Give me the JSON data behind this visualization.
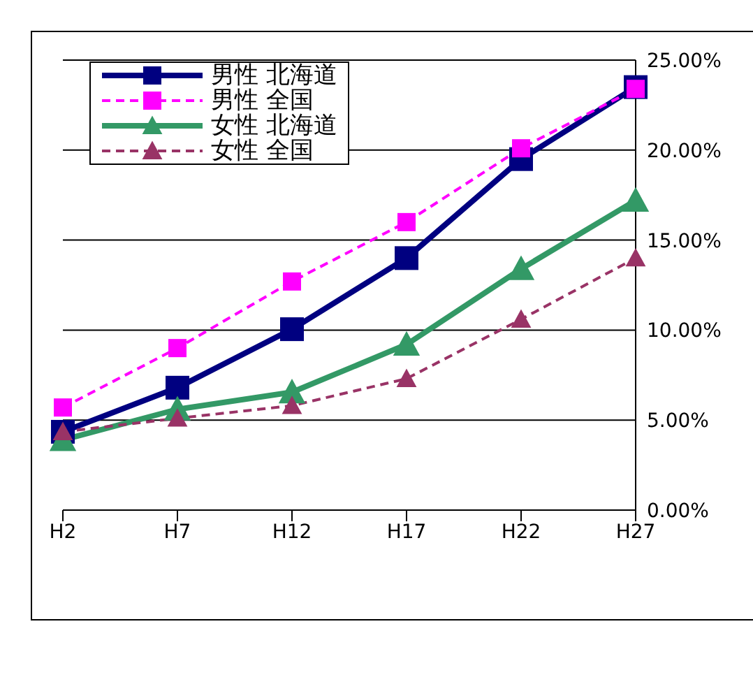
{
  "chart_data": {
    "type": "line",
    "categories": [
      "H2",
      "H7",
      "H12",
      "H17",
      "H22",
      "H27"
    ],
    "series": [
      {
        "name": "男性 北海道",
        "color": "#000080",
        "marker": "square",
        "line_style": "solid",
        "values": [
          4.35,
          6.8,
          10.05,
          14.0,
          19.5,
          23.5
        ]
      },
      {
        "name": "男性 全国",
        "color": "#ff00ff",
        "marker": "square",
        "line_style": "dashed",
        "values": [
          5.7,
          9.0,
          12.7,
          16.0,
          20.1,
          23.4
        ]
      },
      {
        "name": "女性 北海道",
        "color": "#339966",
        "marker": "triangle",
        "line_style": "solid",
        "values": [
          3.9,
          5.6,
          6.55,
          9.2,
          13.4,
          17.2
        ]
      },
      {
        "name": "女性 全国",
        "color": "#993366",
        "marker": "triangle",
        "line_style": "dashed",
        "values": [
          4.35,
          5.1,
          5.8,
          7.3,
          10.6,
          14.0
        ]
      }
    ],
    "ylim": [
      0,
      25
    ],
    "yticks": [
      {
        "value": 0,
        "label": "0.00%"
      },
      {
        "value": 5,
        "label": "5.00%"
      },
      {
        "value": 10,
        "label": "10.00%"
      },
      {
        "value": 15,
        "label": "15.00%"
      },
      {
        "value": 20,
        "label": "20.00%"
      },
      {
        "value": 25,
        "label": "25.00%"
      }
    ],
    "grid": "y",
    "legend": "top left"
  }
}
